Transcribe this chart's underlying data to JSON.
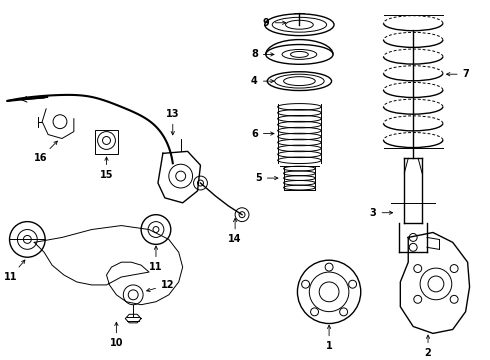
{
  "bg_color": "#ffffff",
  "line_color": "#000000",
  "fig_width": 4.9,
  "fig_height": 3.6,
  "dpi": 100,
  "font_size": 7.0
}
